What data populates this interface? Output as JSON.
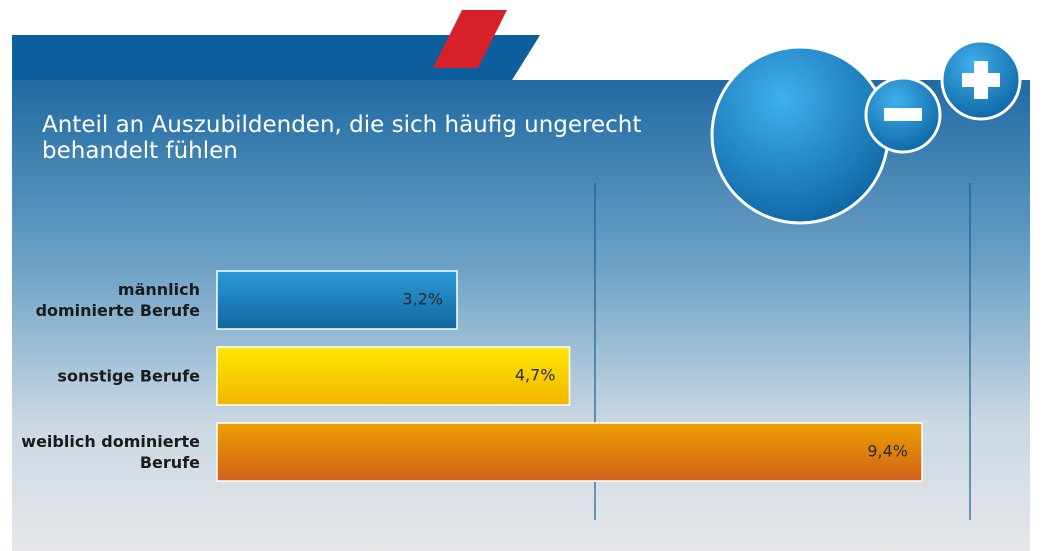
{
  "chart_data": {
    "type": "barh",
    "title": "Anteil an Auszubildenden, die sich häufig ungerecht behandelt fühlen",
    "categories": [
      "männlich dominierte Berufe",
      "sonstige Berufe",
      "weiblich dominierte Berufe"
    ],
    "values": [
      3.2,
      4.7,
      9.4
    ],
    "value_labels": [
      "3,2%",
      "4,7%",
      "9,4%"
    ],
    "colors": [
      [
        "#2a9ad8",
        "#14679f"
      ],
      [
        "#ffe600",
        "#f2b600"
      ],
      [
        "#eda000",
        "#d2601a"
      ]
    ],
    "xlim": [
      0,
      10
    ],
    "xticks": [
      5,
      10
    ],
    "grid": true
  }
}
